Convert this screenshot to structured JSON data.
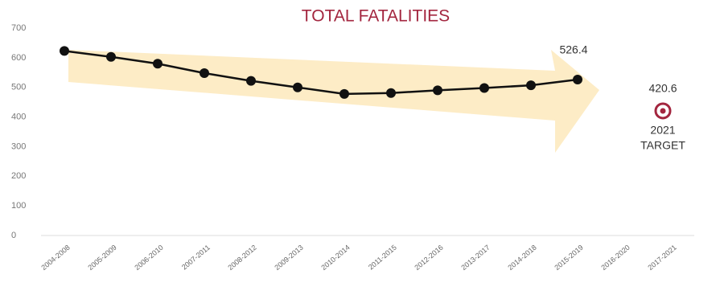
{
  "chart_data": {
    "type": "line",
    "title": "TOTAL FATALITIES",
    "categories": [
      "2004-2008",
      "2005-2009",
      "2006-2010",
      "2007-2011",
      "2008-2012",
      "2009-2013",
      "2010-2014",
      "2011-2015",
      "2012-2016",
      "2013-2017",
      "2014-2018",
      "2015-2019",
      "2016-2020",
      "2017-2021"
    ],
    "series": [
      {
        "color": "#111111",
        "values": [
          623,
          603,
          580,
          548,
          522,
          500,
          478,
          481,
          490,
          498,
          507,
          526.4,
          null,
          null
        ]
      }
    ],
    "target": {
      "value": 420.6,
      "label": [
        "2021",
        "TARGET"
      ],
      "color": "#a3263f"
    },
    "ylim": [
      0,
      700
    ],
    "yticks": [
      0,
      100,
      200,
      300,
      400,
      500,
      600,
      700
    ]
  }
}
